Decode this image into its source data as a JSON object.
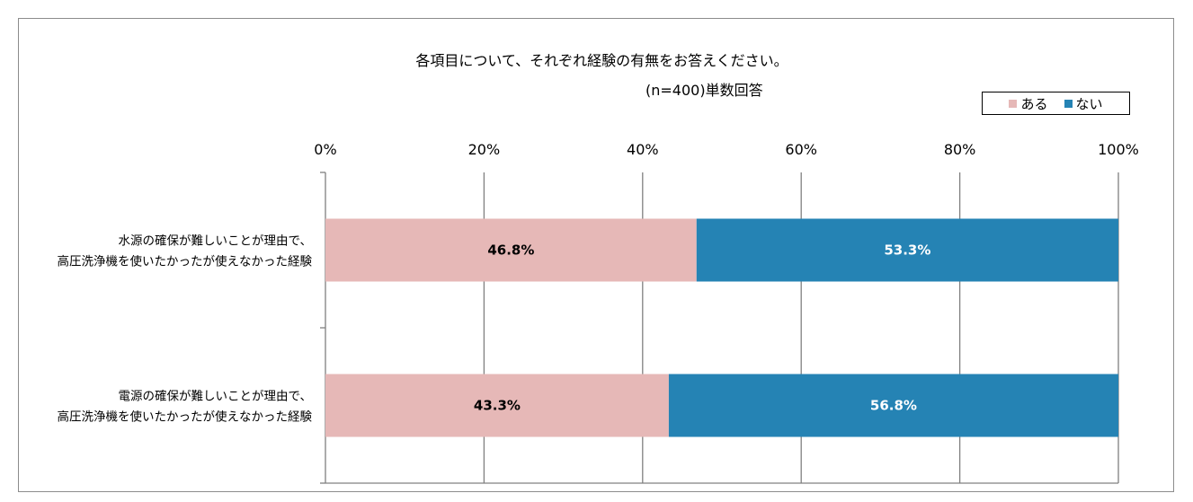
{
  "chart_data": {
    "type": "bar",
    "orientation": "horizontal",
    "stacked": true,
    "title": "各項目について、それぞれ経験の有無をお答えください。",
    "subtitle": "(n=400)単数回答",
    "categories": [
      [
        "水源の確保が難しいことが理由で、",
        "高圧洗浄機を使いたかったが使えなかった経験"
      ],
      [
        "電源の確保が難しいことが理由で、",
        "高圧洗浄機を使いたかったが使えなかった経験"
      ]
    ],
    "series": [
      {
        "name": "ある",
        "color": "#e6b8b7",
        "values": [
          46.8,
          43.3
        ],
        "labels": [
          "46.8%",
          "43.3%"
        ],
        "label_color": "#000000"
      },
      {
        "name": "ない",
        "color": "#2583b4",
        "values": [
          53.3,
          56.8
        ],
        "labels": [
          "53.3%",
          "56.8%"
        ],
        "label_color": "#ffffff"
      }
    ],
    "xlim": [
      0,
      100
    ],
    "x_ticks": [
      "0%",
      "20%",
      "40%",
      "60%",
      "80%",
      "100%"
    ],
    "grid": true,
    "legend_position": "top-right"
  }
}
